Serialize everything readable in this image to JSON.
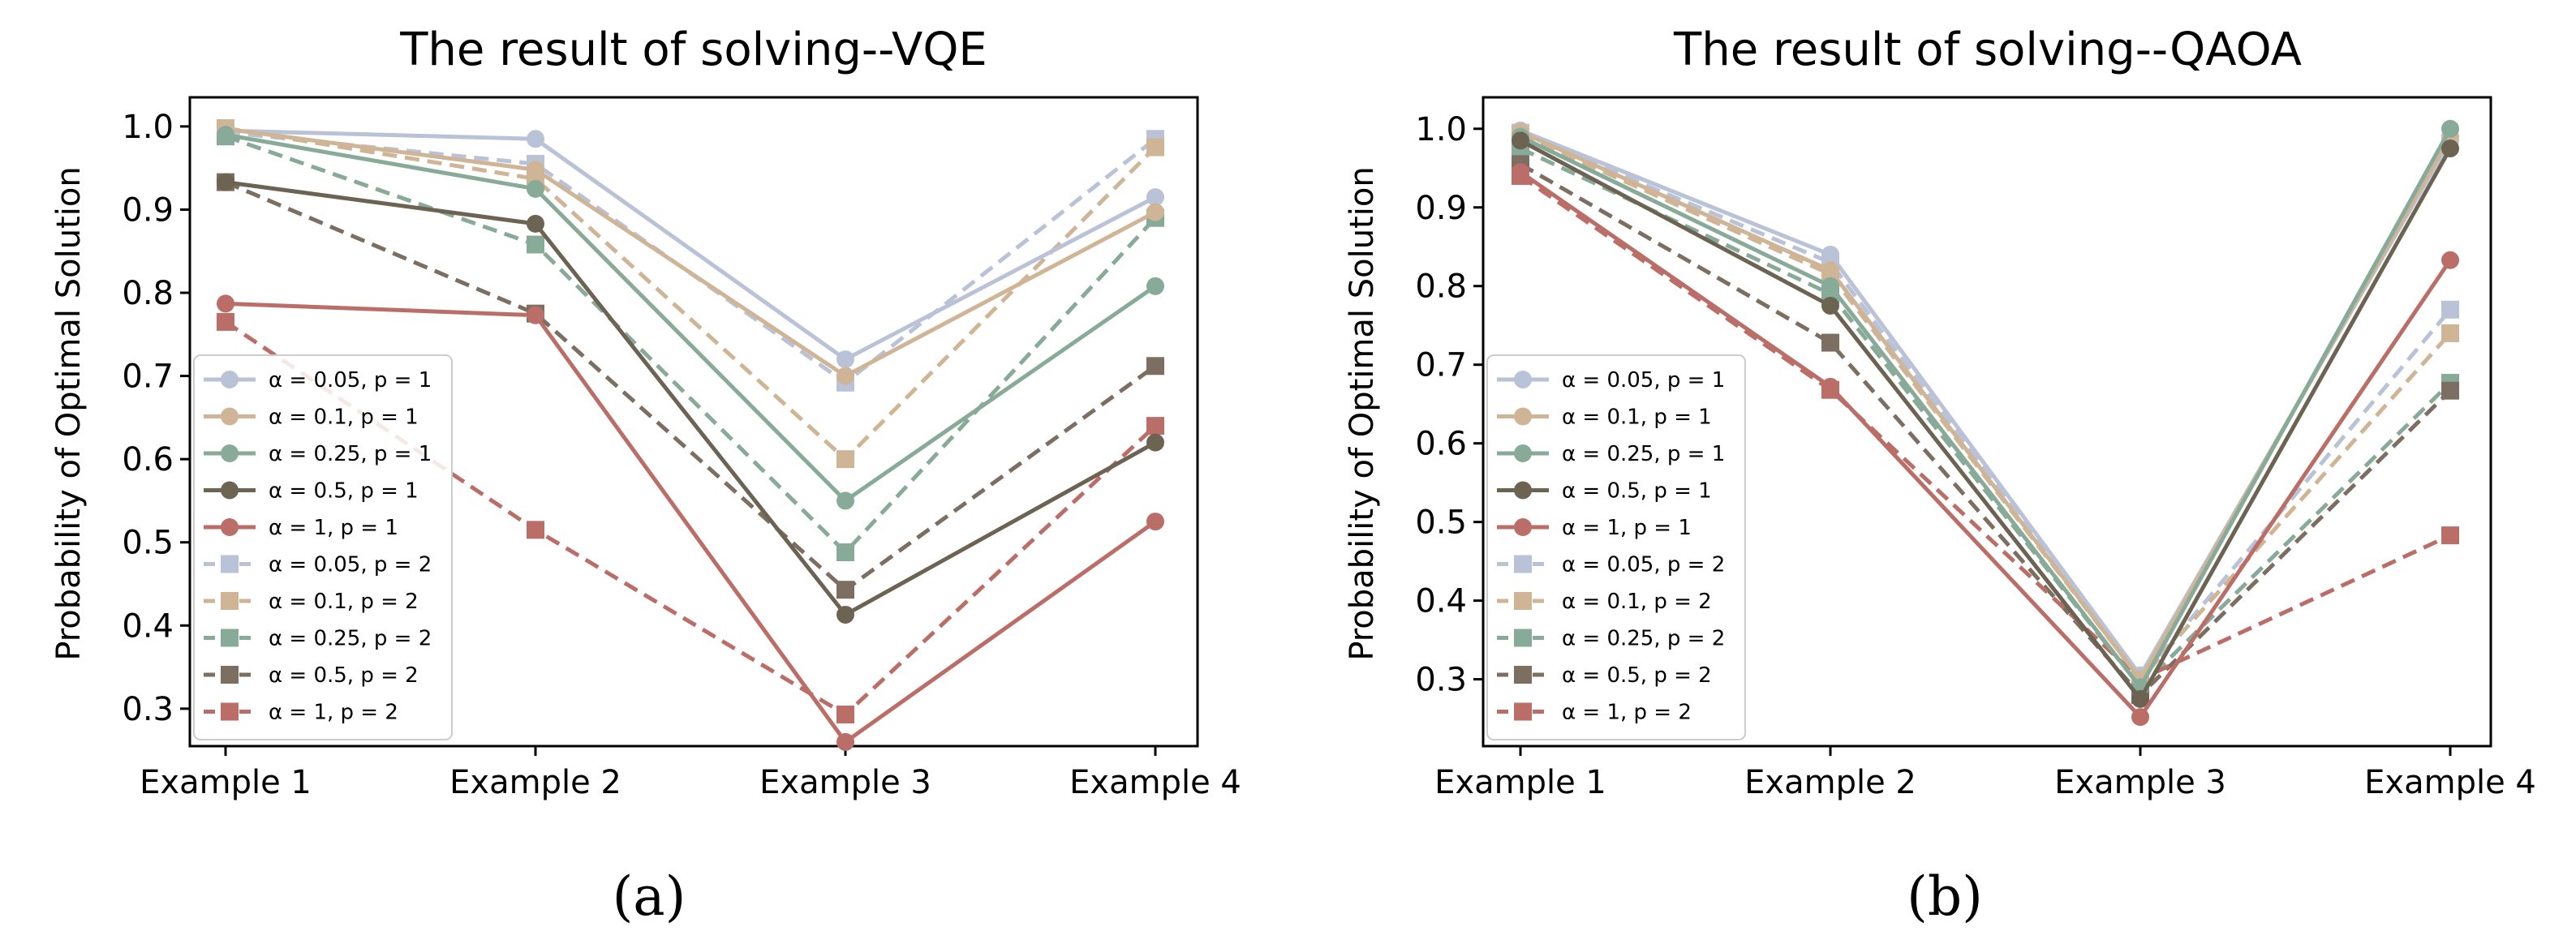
{
  "legend_entries": [
    {
      "label": "α = 0.05, p = 1",
      "color": "#b9c2d6",
      "dash": false,
      "marker": "circle"
    },
    {
      "label": "α = 0.1, p = 1",
      "color": "#cfb596",
      "dash": false,
      "marker": "circle"
    },
    {
      "label": "α = 0.25, p = 1",
      "color": "#88ab99",
      "dash": false,
      "marker": "circle"
    },
    {
      "label": "α = 0.5, p = 1",
      "color": "#6d6353",
      "dash": false,
      "marker": "circle"
    },
    {
      "label": "α = 1, p = 1",
      "color": "#bb6e68",
      "dash": false,
      "marker": "circle"
    },
    {
      "label": "α = 0.05, p = 2",
      "color": "#b9c2d6",
      "dash": true,
      "marker": "square"
    },
    {
      "label": "α = 0.1, p = 2",
      "color": "#cfb596",
      "dash": true,
      "marker": "square"
    },
    {
      "label": "α = 0.25, p = 2",
      "color": "#88ab99",
      "dash": true,
      "marker": "square"
    },
    {
      "label": "α = 0.5, p = 2",
      "color": "#7c6e60",
      "dash": true,
      "marker": "square"
    },
    {
      "label": "α = 1, p = 2",
      "color": "#bb6e68",
      "dash": true,
      "marker": "square"
    }
  ],
  "chart_data": [
    {
      "type": "line",
      "title": "The result of solving--VQE",
      "caption": "(a)",
      "xlabel": "",
      "ylabel": "Probability of Optimal Solution",
      "categories": [
        "Example 1",
        "Example 2",
        "Example 3",
        "Example 4"
      ],
      "ylim": [
        0.255,
        1.035
      ],
      "yticks": [
        0.3,
        0.4,
        0.5,
        0.6,
        0.7,
        0.8,
        0.9,
        1.0
      ],
      "legend_position": "lower-left",
      "grid": false,
      "series": [
        {
          "name": "α = 0.05, p = 1",
          "values": [
            0.995,
            0.985,
            0.72,
            0.915
          ]
        },
        {
          "name": "α = 0.1, p = 1",
          "values": [
            0.997,
            0.948,
            0.7,
            0.897
          ]
        },
        {
          "name": "α = 0.25, p = 1",
          "values": [
            0.99,
            0.925,
            0.55,
            0.808
          ]
        },
        {
          "name": "α = 0.5, p = 1",
          "values": [
            0.933,
            0.883,
            0.413,
            0.62
          ]
        },
        {
          "name": "α = 1, p = 1",
          "values": [
            0.787,
            0.773,
            0.26,
            0.525
          ]
        },
        {
          "name": "α = 0.05, p = 2",
          "values": [
            0.993,
            0.955,
            0.692,
            0.985
          ]
        },
        {
          "name": "α = 0.1, p = 2",
          "values": [
            0.998,
            0.937,
            0.6,
            0.975
          ]
        },
        {
          "name": "α = 0.25, p = 2",
          "values": [
            0.988,
            0.858,
            0.488,
            0.89
          ]
        },
        {
          "name": "α = 0.5, p = 2",
          "values": [
            0.933,
            0.775,
            0.443,
            0.712
          ]
        },
        {
          "name": "α = 1, p = 2",
          "values": [
            0.765,
            0.515,
            0.293,
            0.64
          ]
        }
      ]
    },
    {
      "type": "line",
      "title": "The result of solving--QAOA",
      "caption": "(b)",
      "xlabel": "",
      "ylabel": "Probability of Optimal Solution",
      "categories": [
        "Example 1",
        "Example 2",
        "Example 3",
        "Example 4"
      ],
      "ylim": [
        0.215,
        1.04
      ],
      "yticks": [
        0.3,
        0.4,
        0.5,
        0.6,
        0.7,
        0.8,
        0.9,
        1.0
      ],
      "legend_position": "lower-left",
      "grid": false,
      "series": [
        {
          "name": "α = 0.05, p = 1",
          "values": [
            0.998,
            0.84,
            0.305,
            0.985
          ]
        },
        {
          "name": "α = 0.1, p = 1",
          "values": [
            0.996,
            0.82,
            0.3,
            0.99
          ]
        },
        {
          "name": "α = 0.25, p = 1",
          "values": [
            0.99,
            0.8,
            0.29,
            1.0
          ]
        },
        {
          "name": "α = 0.5, p = 1",
          "values": [
            0.985,
            0.775,
            0.275,
            0.975
          ]
        },
        {
          "name": "α = 1, p = 1",
          "values": [
            0.945,
            0.672,
            0.252,
            0.833
          ]
        },
        {
          "name": "α = 0.05, p = 2",
          "values": [
            0.995,
            0.83,
            0.3,
            0.77
          ]
        },
        {
          "name": "α = 0.1, p = 2",
          "values": [
            0.993,
            0.815,
            0.3,
            0.74
          ]
        },
        {
          "name": "α = 0.25, p = 2",
          "values": [
            0.975,
            0.79,
            0.29,
            0.677
          ]
        },
        {
          "name": "α = 0.5, p = 2",
          "values": [
            0.955,
            0.728,
            0.28,
            0.667
          ]
        },
        {
          "name": "α = 1, p = 2",
          "values": [
            0.94,
            0.668,
            0.3,
            0.483
          ]
        }
      ]
    }
  ]
}
